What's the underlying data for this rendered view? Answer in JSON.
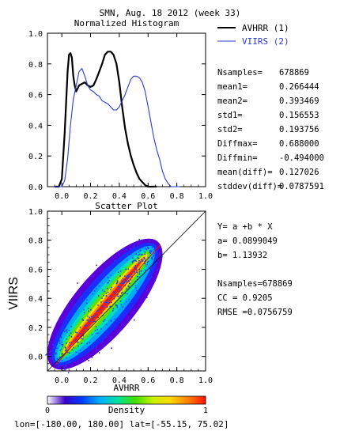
{
  "header": {
    "title": "SMN,  Aug. 18 2012 (week 33)"
  },
  "chart_data": [
    {
      "type": "line",
      "title": "Normalized Histogram",
      "xlim": [
        -0.1,
        1.0
      ],
      "ylim": [
        0.0,
        1.0
      ],
      "xticks": [
        "0.0",
        "0.2",
        "0.4",
        "0.6",
        "0.8",
        "1.0"
      ],
      "yticks": [
        "0.0",
        "0.2",
        "0.4",
        "0.6",
        "0.8",
        "1.0"
      ],
      "legend_position": "outside-right",
      "series": [
        {
          "name": "AVHRR (1)",
          "color": "#000000",
          "x": [
            -0.05,
            -0.02,
            0.0,
            0.02,
            0.04,
            0.05,
            0.06,
            0.07,
            0.08,
            0.09,
            0.1,
            0.12,
            0.14,
            0.16,
            0.18,
            0.2,
            0.22,
            0.24,
            0.26,
            0.28,
            0.3,
            0.32,
            0.34,
            0.36,
            0.38,
            0.4,
            0.42,
            0.44,
            0.46,
            0.48,
            0.5,
            0.52,
            0.54,
            0.56,
            0.58,
            0.6,
            0.62,
            0.64,
            0.66
          ],
          "values": [
            0.0,
            0.0,
            0.05,
            0.35,
            0.75,
            0.86,
            0.87,
            0.84,
            0.72,
            0.66,
            0.62,
            0.66,
            0.67,
            0.68,
            0.66,
            0.65,
            0.66,
            0.7,
            0.75,
            0.8,
            0.86,
            0.88,
            0.88,
            0.86,
            0.8,
            0.68,
            0.52,
            0.38,
            0.28,
            0.2,
            0.14,
            0.09,
            0.05,
            0.03,
            0.01,
            0.0,
            0.0,
            0.0,
            0.0
          ]
        },
        {
          "name": "VIIRS (2)",
          "color": "#2a3bd6",
          "x": [
            -0.05,
            0.0,
            0.02,
            0.04,
            0.06,
            0.08,
            0.1,
            0.12,
            0.14,
            0.16,
            0.18,
            0.2,
            0.22,
            0.24,
            0.26,
            0.28,
            0.3,
            0.32,
            0.34,
            0.36,
            0.38,
            0.4,
            0.42,
            0.44,
            0.46,
            0.48,
            0.5,
            0.52,
            0.54,
            0.56,
            0.58,
            0.6,
            0.62,
            0.64,
            0.66,
            0.68,
            0.7,
            0.72,
            0.74,
            0.76,
            0.78,
            0.8,
            0.82
          ],
          "values": [
            0.0,
            0.0,
            0.04,
            0.18,
            0.4,
            0.57,
            0.66,
            0.75,
            0.77,
            0.72,
            0.66,
            0.63,
            0.62,
            0.6,
            0.59,
            0.56,
            0.55,
            0.54,
            0.52,
            0.5,
            0.5,
            0.52,
            0.56,
            0.6,
            0.65,
            0.7,
            0.72,
            0.72,
            0.71,
            0.68,
            0.62,
            0.52,
            0.42,
            0.32,
            0.24,
            0.18,
            0.1,
            0.05,
            0.02,
            0.0,
            0.0,
            0.0,
            0.0
          ]
        }
      ],
      "stats": [
        {
          "label": "Nsamples=",
          "value": "678869"
        },
        {
          "label": "mean1=",
          "value": "0.266444"
        },
        {
          "label": "mean2=",
          "value": "0.393469"
        },
        {
          "label": "std1=",
          "value": "0.156553"
        },
        {
          "label": "std2=",
          "value": "0.193756"
        },
        {
          "label": "Diffmax=",
          "value": "0.688000"
        },
        {
          "label": "Diffmin=",
          "value": "-0.494000"
        },
        {
          "label": "mean(diff)=",
          "value": "0.127026"
        },
        {
          "label": "stddev(diff)=",
          "value": "0.0787591"
        }
      ]
    },
    {
      "type": "heatmap",
      "title": "Scatter Plot",
      "xlabel": "AVHRR",
      "ylabel": "VIIRS",
      "xlim": [
        -0.1,
        1.0
      ],
      "ylim": [
        -0.1,
        1.0
      ],
      "xticks": [
        "0.0",
        "0.2",
        "0.4",
        "0.6",
        "0.8",
        "1.0"
      ],
      "yticks": [
        "0.0",
        "0.2",
        "0.4",
        "0.6",
        "0.8",
        "1.0"
      ],
      "regression": {
        "a": 0.0899049,
        "b": 1.13932
      },
      "one_to_one_line": true,
      "density_ridge": {
        "x": [
          -0.05,
          0.65
        ],
        "y": [
          -0.05,
          0.77
        ]
      },
      "stats": [
        "Y= a +b * X",
        "a= 0.0899049",
        "b= 1.13932",
        "",
        "Nsamples=678869",
        "CC = 0.9205",
        "RMSE =0.0756759"
      ],
      "colorbar": {
        "label": "Density",
        "min_label": "0",
        "max_label": "1",
        "colors": [
          "#ffffff",
          "#3a00c8",
          "#0040ff",
          "#00b0ff",
          "#00e0a0",
          "#40e000",
          "#c8f000",
          "#ffd800",
          "#ff8000",
          "#ff1000"
        ]
      }
    }
  ],
  "footer": {
    "coords": "lon=[-180.00, 180.00] lat=[-55.15, 75.02]"
  }
}
